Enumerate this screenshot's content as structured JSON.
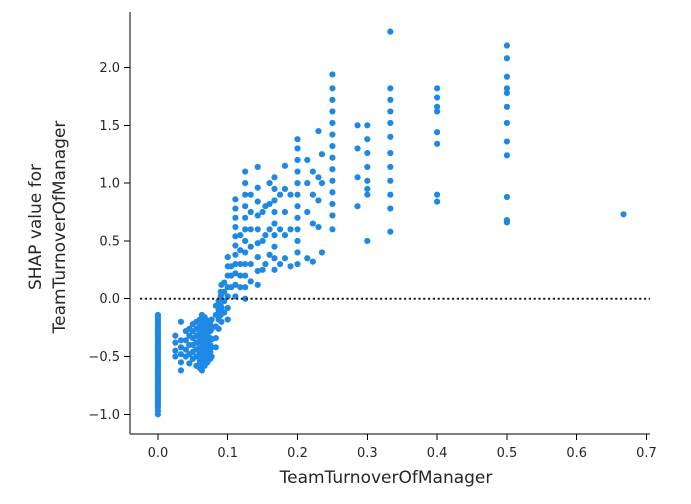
{
  "chart_data": {
    "type": "scatter",
    "title": "",
    "xlabel": "TeamTurnoverOfManager",
    "ylabel_lines": [
      "SHAP value for",
      "TeamTurnoverOfManager"
    ],
    "xlim": [
      -0.04,
      0.705
    ],
    "ylim": [
      -1.17,
      2.48
    ],
    "x_ticks": [
      0.0,
      0.1,
      0.2,
      0.3,
      0.4,
      0.5,
      0.6,
      0.7
    ],
    "x_tick_labels": [
      "0.0",
      "0.1",
      "0.2",
      "0.3",
      "0.4",
      "0.5",
      "0.6",
      "0.7"
    ],
    "y_ticks": [
      -1.0,
      -0.5,
      0.0,
      0.5,
      1.0,
      1.5,
      2.0
    ],
    "y_tick_labels": [
      "−1.0",
      "−0.5",
      "0.0",
      "0.5",
      "1.0",
      "1.5",
      "2.0"
    ],
    "reference_line": {
      "y": 0.0,
      "style": "dotted",
      "color": "#1f1f1f"
    },
    "grid": false,
    "legend": "none",
    "point_color": "#1e88e5",
    "series": [
      {
        "points": [
          [
            0.0,
            -1.0
          ],
          [
            0.0,
            -0.97
          ],
          [
            0.0,
            -0.94
          ],
          [
            0.0,
            -0.92
          ],
          [
            0.0,
            -0.9
          ],
          [
            0.0,
            -0.88
          ],
          [
            0.0,
            -0.86
          ],
          [
            0.0,
            -0.84
          ],
          [
            0.0,
            -0.82
          ],
          [
            0.0,
            -0.8
          ],
          [
            0.0,
            -0.78
          ],
          [
            0.0,
            -0.76
          ],
          [
            0.0,
            -0.74
          ],
          [
            0.0,
            -0.72
          ],
          [
            0.0,
            -0.7
          ],
          [
            0.0,
            -0.68
          ],
          [
            0.0,
            -0.66
          ],
          [
            0.0,
            -0.64
          ],
          [
            0.0,
            -0.62
          ],
          [
            0.0,
            -0.6
          ],
          [
            0.0,
            -0.58
          ],
          [
            0.0,
            -0.56
          ],
          [
            0.0,
            -0.54
          ],
          [
            0.0,
            -0.52
          ],
          [
            0.0,
            -0.5
          ],
          [
            0.0,
            -0.48
          ],
          [
            0.0,
            -0.46
          ],
          [
            0.0,
            -0.44
          ],
          [
            0.0,
            -0.42
          ],
          [
            0.0,
            -0.4
          ],
          [
            0.0,
            -0.38
          ],
          [
            0.0,
            -0.36
          ],
          [
            0.0,
            -0.34
          ],
          [
            0.0,
            -0.32
          ],
          [
            0.0,
            -0.3
          ],
          [
            0.0,
            -0.28
          ],
          [
            0.0,
            -0.26
          ],
          [
            0.0,
            -0.24
          ],
          [
            0.0,
            -0.22
          ],
          [
            0.0,
            -0.2
          ],
          [
            0.0,
            -0.18
          ],
          [
            0.0,
            -0.16
          ],
          [
            0.0,
            -0.14
          ],
          [
            0.025,
            -0.5
          ],
          [
            0.025,
            -0.45
          ],
          [
            0.025,
            -0.38
          ],
          [
            0.025,
            -0.32
          ],
          [
            0.033,
            -0.62
          ],
          [
            0.033,
            -0.55
          ],
          [
            0.033,
            -0.48
          ],
          [
            0.033,
            -0.42
          ],
          [
            0.033,
            -0.36
          ],
          [
            0.033,
            -0.2
          ],
          [
            0.04,
            -0.5
          ],
          [
            0.04,
            -0.44
          ],
          [
            0.04,
            -0.36
          ],
          [
            0.04,
            -0.28
          ],
          [
            0.045,
            -0.56
          ],
          [
            0.045,
            -0.48
          ],
          [
            0.045,
            -0.4
          ],
          [
            0.045,
            -0.32
          ],
          [
            0.045,
            -0.26
          ],
          [
            0.05,
            -0.52
          ],
          [
            0.05,
            -0.46
          ],
          [
            0.05,
            -0.4
          ],
          [
            0.05,
            -0.34
          ],
          [
            0.05,
            -0.28
          ],
          [
            0.05,
            -0.22
          ],
          [
            0.055,
            -0.58
          ],
          [
            0.055,
            -0.5
          ],
          [
            0.055,
            -0.44
          ],
          [
            0.055,
            -0.38
          ],
          [
            0.055,
            -0.32
          ],
          [
            0.055,
            -0.26
          ],
          [
            0.055,
            -0.2
          ],
          [
            0.06,
            -0.6
          ],
          [
            0.06,
            -0.54
          ],
          [
            0.06,
            -0.48
          ],
          [
            0.06,
            -0.42
          ],
          [
            0.06,
            -0.36
          ],
          [
            0.06,
            -0.3
          ],
          [
            0.06,
            -0.24
          ],
          [
            0.06,
            -0.18
          ],
          [
            0.063,
            -0.62
          ],
          [
            0.063,
            -0.56
          ],
          [
            0.063,
            -0.5
          ],
          [
            0.063,
            -0.44
          ],
          [
            0.063,
            -0.38
          ],
          [
            0.063,
            -0.32
          ],
          [
            0.063,
            -0.26
          ],
          [
            0.063,
            -0.2
          ],
          [
            0.063,
            -0.14
          ],
          [
            0.067,
            -0.58
          ],
          [
            0.067,
            -0.52
          ],
          [
            0.067,
            -0.46
          ],
          [
            0.067,
            -0.4
          ],
          [
            0.067,
            -0.34
          ],
          [
            0.067,
            -0.28
          ],
          [
            0.067,
            -0.22
          ],
          [
            0.067,
            -0.16
          ],
          [
            0.071,
            -0.55
          ],
          [
            0.071,
            -0.49
          ],
          [
            0.071,
            -0.43
          ],
          [
            0.071,
            -0.37
          ],
          [
            0.071,
            -0.31
          ],
          [
            0.071,
            -0.25
          ],
          [
            0.071,
            -0.19
          ],
          [
            0.075,
            -0.52
          ],
          [
            0.075,
            -0.46
          ],
          [
            0.075,
            -0.4
          ],
          [
            0.075,
            -0.34
          ],
          [
            0.075,
            -0.28
          ],
          [
            0.075,
            -0.22
          ],
          [
            0.077,
            -0.5
          ],
          [
            0.077,
            -0.42
          ],
          [
            0.077,
            -0.35
          ],
          [
            0.077,
            -0.26
          ],
          [
            0.077,
            -0.18
          ],
          [
            0.083,
            -0.42
          ],
          [
            0.083,
            -0.34
          ],
          [
            0.083,
            -0.24
          ],
          [
            0.083,
            -0.14
          ],
          [
            0.083,
            -0.06
          ],
          [
            0.087,
            -0.26
          ],
          [
            0.087,
            -0.18
          ],
          [
            0.087,
            -0.1
          ],
          [
            0.087,
            -0.02
          ],
          [
            0.09,
            -0.14
          ],
          [
            0.09,
            -0.06
          ],
          [
            0.09,
            0.02
          ],
          [
            0.09,
            0.06
          ],
          [
            0.091,
            -0.2
          ],
          [
            0.091,
            -0.08
          ],
          [
            0.091,
            0.04
          ],
          [
            0.091,
            0.12
          ],
          [
            0.095,
            -0.12
          ],
          [
            0.095,
            -0.02
          ],
          [
            0.095,
            0.06
          ],
          [
            0.095,
            0.14
          ],
          [
            0.1,
            -0.18
          ],
          [
            0.1,
            -0.08
          ],
          [
            0.1,
            0.02
          ],
          [
            0.1,
            0.1
          ],
          [
            0.1,
            0.2
          ],
          [
            0.1,
            0.28
          ],
          [
            0.1,
            0.36
          ],
          [
            0.105,
            0.1
          ],
          [
            0.105,
            0.2
          ],
          [
            0.105,
            0.28
          ],
          [
            0.111,
            0.02
          ],
          [
            0.111,
            0.12
          ],
          [
            0.111,
            0.22
          ],
          [
            0.111,
            0.3
          ],
          [
            0.111,
            0.38
          ],
          [
            0.111,
            0.46
          ],
          [
            0.111,
            0.54
          ],
          [
            0.111,
            0.62
          ],
          [
            0.111,
            0.7
          ],
          [
            0.111,
            0.78
          ],
          [
            0.111,
            0.86
          ],
          [
            0.118,
            0.1
          ],
          [
            0.118,
            0.2
          ],
          [
            0.118,
            0.3
          ],
          [
            0.118,
            0.42
          ],
          [
            0.118,
            0.55
          ],
          [
            0.125,
            0.0
          ],
          [
            0.125,
            0.1
          ],
          [
            0.125,
            0.2
          ],
          [
            0.125,
            0.3
          ],
          [
            0.125,
            0.4
          ],
          [
            0.125,
            0.5
          ],
          [
            0.125,
            0.6
          ],
          [
            0.125,
            0.7
          ],
          [
            0.125,
            0.8
          ],
          [
            0.125,
            0.9
          ],
          [
            0.125,
            1.0
          ],
          [
            0.125,
            1.1
          ],
          [
            0.133,
            0.15
          ],
          [
            0.133,
            0.3
          ],
          [
            0.133,
            0.45
          ],
          [
            0.133,
            0.6
          ],
          [
            0.133,
            0.75
          ],
          [
            0.133,
            0.9
          ],
          [
            0.143,
            0.12
          ],
          [
            0.143,
            0.24
          ],
          [
            0.143,
            0.36
          ],
          [
            0.143,
            0.48
          ],
          [
            0.143,
            0.6
          ],
          [
            0.143,
            0.72
          ],
          [
            0.143,
            0.84
          ],
          [
            0.143,
            0.96
          ],
          [
            0.143,
            1.14
          ],
          [
            0.15,
            0.25
          ],
          [
            0.15,
            0.5
          ],
          [
            0.15,
            0.75
          ],
          [
            0.154,
            0.3
          ],
          [
            0.154,
            0.55
          ],
          [
            0.154,
            0.8
          ],
          [
            0.16,
            0.38
          ],
          [
            0.16,
            0.6
          ],
          [
            0.16,
            0.82
          ],
          [
            0.16,
            1.0
          ],
          [
            0.167,
            0.25
          ],
          [
            0.167,
            0.35
          ],
          [
            0.167,
            0.45
          ],
          [
            0.167,
            0.55
          ],
          [
            0.167,
            0.65
          ],
          [
            0.167,
            0.75
          ],
          [
            0.167,
            0.85
          ],
          [
            0.167,
            0.95
          ],
          [
            0.167,
            1.05
          ],
          [
            0.175,
            0.3
          ],
          [
            0.175,
            0.6
          ],
          [
            0.175,
            0.9
          ],
          [
            0.182,
            0.35
          ],
          [
            0.182,
            0.55
          ],
          [
            0.182,
            0.75
          ],
          [
            0.182,
            0.95
          ],
          [
            0.182,
            1.15
          ],
          [
            0.19,
            0.28
          ],
          [
            0.19,
            0.6
          ],
          [
            0.19,
            0.9
          ],
          [
            0.2,
            0.3
          ],
          [
            0.2,
            0.4
          ],
          [
            0.2,
            0.5
          ],
          [
            0.2,
            0.6
          ],
          [
            0.2,
            0.7
          ],
          [
            0.2,
            0.8
          ],
          [
            0.2,
            0.9
          ],
          [
            0.2,
            1.0
          ],
          [
            0.2,
            1.1
          ],
          [
            0.2,
            1.2
          ],
          [
            0.2,
            1.3
          ],
          [
            0.2,
            1.38
          ],
          [
            0.214,
            0.35
          ],
          [
            0.214,
            0.75
          ],
          [
            0.214,
            1.0
          ],
          [
            0.214,
            1.2
          ],
          [
            0.222,
            0.32
          ],
          [
            0.222,
            0.65
          ],
          [
            0.222,
            0.9
          ],
          [
            0.222,
            1.1
          ],
          [
            0.23,
            0.62
          ],
          [
            0.23,
            0.85
          ],
          [
            0.23,
            1.05
          ],
          [
            0.23,
            1.45
          ],
          [
            0.235,
            0.4
          ],
          [
            0.235,
            1.0
          ],
          [
            0.235,
            1.25
          ],
          [
            0.25,
            0.6
          ],
          [
            0.25,
            0.72
          ],
          [
            0.25,
            0.82
          ],
          [
            0.25,
            0.92
          ],
          [
            0.25,
            1.02
          ],
          [
            0.25,
            1.12
          ],
          [
            0.25,
            1.22
          ],
          [
            0.25,
            1.32
          ],
          [
            0.25,
            1.42
          ],
          [
            0.25,
            1.52
          ],
          [
            0.25,
            1.62
          ],
          [
            0.25,
            1.72
          ],
          [
            0.25,
            1.82
          ],
          [
            0.25,
            1.94
          ],
          [
            0.286,
            0.8
          ],
          [
            0.286,
            1.05
          ],
          [
            0.286,
            1.3
          ],
          [
            0.286,
            1.5
          ],
          [
            0.3,
            0.9
          ],
          [
            0.3,
            1.02
          ],
          [
            0.3,
            1.14
          ],
          [
            0.3,
            1.26
          ],
          [
            0.3,
            1.38
          ],
          [
            0.3,
            1.5
          ],
          [
            0.3,
            0.5
          ],
          [
            0.3,
            0.95
          ],
          [
            0.333,
            0.58
          ],
          [
            0.333,
            0.78
          ],
          [
            0.333,
            0.9
          ],
          [
            0.333,
            1.02
          ],
          [
            0.333,
            1.14
          ],
          [
            0.333,
            1.26
          ],
          [
            0.333,
            1.4
          ],
          [
            0.333,
            1.52
          ],
          [
            0.333,
            1.62
          ],
          [
            0.333,
            1.72
          ],
          [
            0.333,
            1.82
          ],
          [
            0.333,
            2.31
          ],
          [
            0.4,
            0.84
          ],
          [
            0.4,
            0.9
          ],
          [
            0.4,
            1.34
          ],
          [
            0.4,
            1.44
          ],
          [
            0.4,
            1.62
          ],
          [
            0.4,
            1.66
          ],
          [
            0.4,
            1.74
          ],
          [
            0.4,
            1.82
          ],
          [
            0.5,
            0.66
          ],
          [
            0.5,
            0.68
          ],
          [
            0.5,
            0.88
          ],
          [
            0.5,
            1.24
          ],
          [
            0.5,
            1.36
          ],
          [
            0.5,
            1.52
          ],
          [
            0.5,
            1.66
          ],
          [
            0.5,
            1.78
          ],
          [
            0.5,
            1.82
          ],
          [
            0.5,
            1.92
          ],
          [
            0.5,
            2.08
          ],
          [
            0.5,
            2.19
          ],
          [
            0.667,
            0.73
          ]
        ]
      }
    ]
  }
}
